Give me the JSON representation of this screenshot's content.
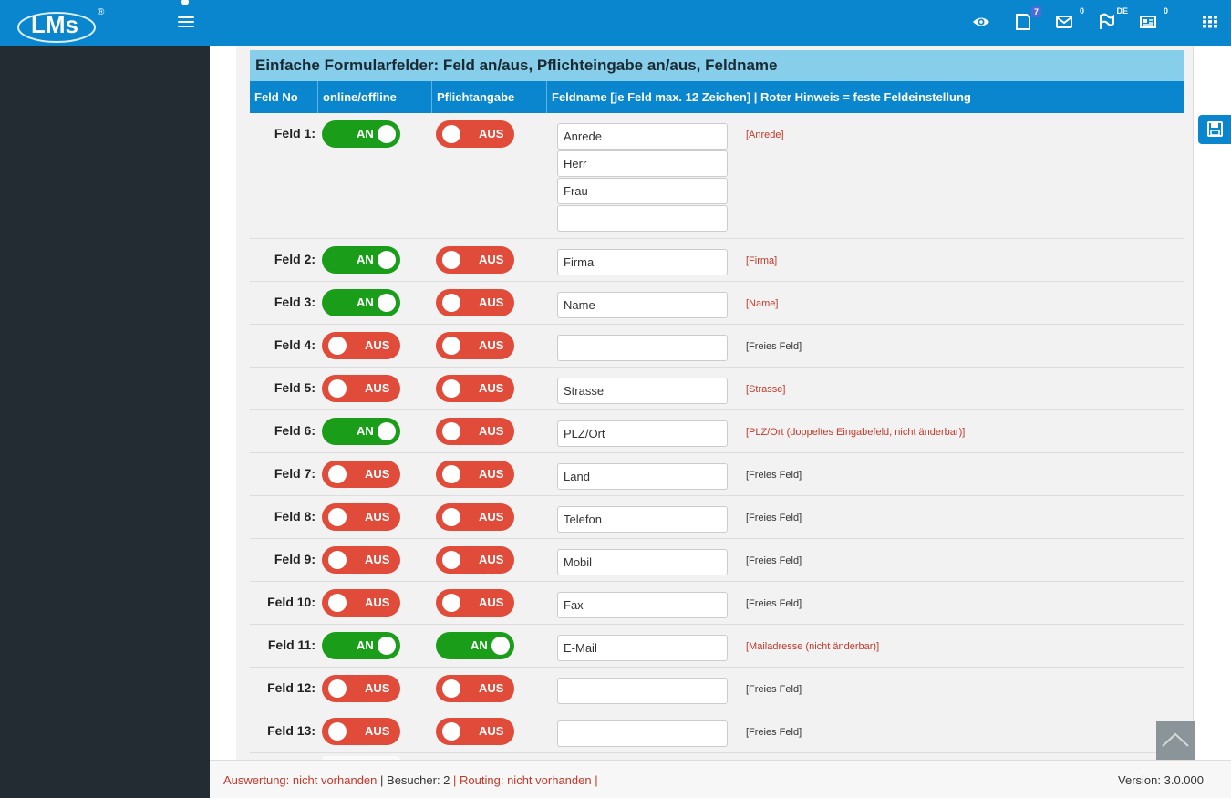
{
  "header": {
    "logo_text": "LMs",
    "logo_reg": "®",
    "icons": [
      "eye-icon",
      "notes-icon",
      "mail-icon",
      "flag-icon",
      "newsletter-icon",
      "apps-grid-icon"
    ],
    "badges": {
      "notes": "7",
      "mail": "0",
      "flag": "DE",
      "newsletter": "0"
    }
  },
  "panel": {
    "title": "Einfache Formularfelder: Feld an/aus, Pflichteingabe an/aus, Feldname",
    "columns": {
      "feld_no": "Feld No",
      "online": "online/offline",
      "pflicht": "Pflichtangabe",
      "feldname": "Feldname [je Feld max. 12 Zeichen] | Roter Hinweis = feste Feldeinstellung"
    }
  },
  "fields": [
    {
      "label": "Feld 1:",
      "online": "AN",
      "online_on": true,
      "pflicht": "AUS",
      "pflicht_on": false,
      "values": [
        "Anrede",
        "Herr",
        "Frau",
        ""
      ],
      "hint": "[Anrede]",
      "hint_red": true
    },
    {
      "label": "Feld 2:",
      "online": "AN",
      "online_on": true,
      "pflicht": "AUS",
      "pflicht_on": false,
      "values": [
        "Firma"
      ],
      "hint": "[Firma]",
      "hint_red": true
    },
    {
      "label": "Feld 3:",
      "online": "AN",
      "online_on": true,
      "pflicht": "AUS",
      "pflicht_on": false,
      "values": [
        "Name"
      ],
      "hint": "[Name]",
      "hint_red": true
    },
    {
      "label": "Feld 4:",
      "online": "AUS",
      "online_on": false,
      "pflicht": "AUS",
      "pflicht_on": false,
      "values": [
        ""
      ],
      "hint": "[Freies Feld]",
      "hint_red": false
    },
    {
      "label": "Feld 5:",
      "online": "AUS",
      "online_on": false,
      "pflicht": "AUS",
      "pflicht_on": false,
      "values": [
        "Strasse"
      ],
      "hint": "[Strasse]",
      "hint_red": true
    },
    {
      "label": "Feld 6:",
      "online": "AN",
      "online_on": true,
      "pflicht": "AUS",
      "pflicht_on": false,
      "values": [
        "PLZ/Ort"
      ],
      "hint": "[PLZ/Ort (doppeltes Eingabefeld, nicht änderbar)]",
      "hint_red": true
    },
    {
      "label": "Feld 7:",
      "online": "AUS",
      "online_on": false,
      "pflicht": "AUS",
      "pflicht_on": false,
      "values": [
        "Land"
      ],
      "hint": "[Freies Feld]",
      "hint_red": false
    },
    {
      "label": "Feld 8:",
      "online": "AUS",
      "online_on": false,
      "pflicht": "AUS",
      "pflicht_on": false,
      "values": [
        "Telefon"
      ],
      "hint": "[Freies Feld]",
      "hint_red": false
    },
    {
      "label": "Feld 9:",
      "online": "AUS",
      "online_on": false,
      "pflicht": "AUS",
      "pflicht_on": false,
      "values": [
        "Mobil"
      ],
      "hint": "[Freies Feld]",
      "hint_red": false
    },
    {
      "label": "Feld 10:",
      "online": "AUS",
      "online_on": false,
      "pflicht": "AUS",
      "pflicht_on": false,
      "values": [
        "Fax"
      ],
      "hint": "[Freies Feld]",
      "hint_red": false
    },
    {
      "label": "Feld 11:",
      "online": "AN",
      "online_on": true,
      "pflicht": "AN",
      "pflicht_on": true,
      "values": [
        "E-Mail"
      ],
      "hint": "[Mailadresse (nicht änderbar)]",
      "hint_red": true
    },
    {
      "label": "Feld 12:",
      "online": "AUS",
      "online_on": false,
      "pflicht": "AUS",
      "pflicht_on": false,
      "values": [
        ""
      ],
      "hint": "[Freies Feld]",
      "hint_red": false
    },
    {
      "label": "Feld 13:",
      "online": "AUS",
      "online_on": false,
      "pflicht": "AUS",
      "pflicht_on": false,
      "values": [
        ""
      ],
      "hint": "[Freies Feld]",
      "hint_red": false
    }
  ],
  "footer": {
    "auswertung": "Auswertung: nicht vorhanden",
    "sep": "|",
    "besucher": "Besucher: 2",
    "routing": "Routing: nicht vorhanden",
    "version": "Version: 3.0.000"
  }
}
